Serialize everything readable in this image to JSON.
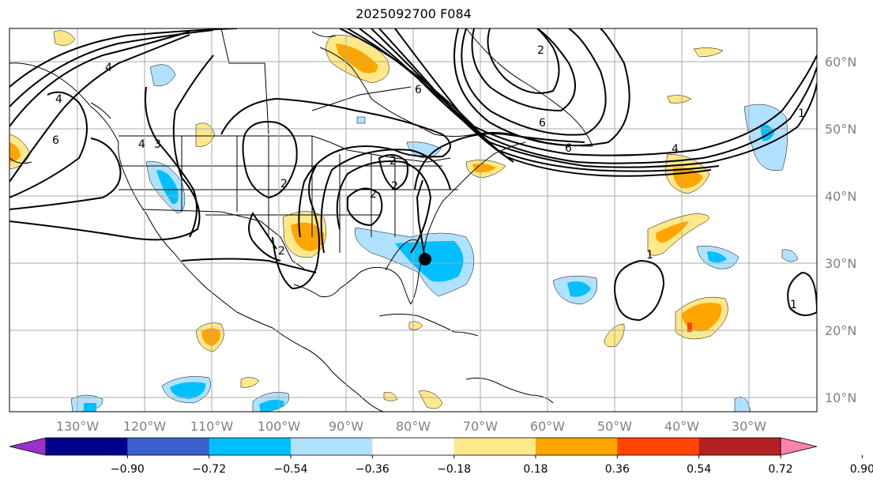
{
  "title": "2025092700 F084",
  "map": {
    "longitude_ticks": [
      "130°W",
      "120°W",
      "110°W",
      "100°W",
      "90°W",
      "80°W",
      "70°W",
      "60°W",
      "50°W",
      "40°W",
      "30°W"
    ],
    "latitude_ticks": [
      "60°N",
      "50°N",
      "40°N",
      "30°N",
      "20°N",
      "10°N"
    ],
    "extent": {
      "lon": [
        -135,
        -15
      ],
      "lat": [
        7.5,
        65
      ]
    },
    "grid": true,
    "storm_marker": {
      "lon": -78.2,
      "lat": 30.7,
      "icon": "storm-center-dot-icon"
    },
    "contour_labels": [
      "4",
      "4",
      "6",
      "4",
      "3",
      "2",
      "2",
      "2",
      "2",
      "2",
      "6",
      "2",
      "6",
      "6",
      "4",
      "1",
      "1",
      "1"
    ]
  },
  "colorbar": {
    "levels": [
      "−0.90",
      "−0.72",
      "−0.54",
      "−0.36",
      "−0.18",
      "0.18",
      "0.36",
      "0.54",
      "0.72",
      "0.90"
    ],
    "colors": [
      "#9932cc",
      "#00008b",
      "#3a5fcd",
      "#00bfff",
      "#b0e2ff",
      "#ffffff",
      "#ffe88a",
      "#ffa500",
      "#ff4500",
      "#b22222",
      "#ff82ab"
    ]
  }
}
